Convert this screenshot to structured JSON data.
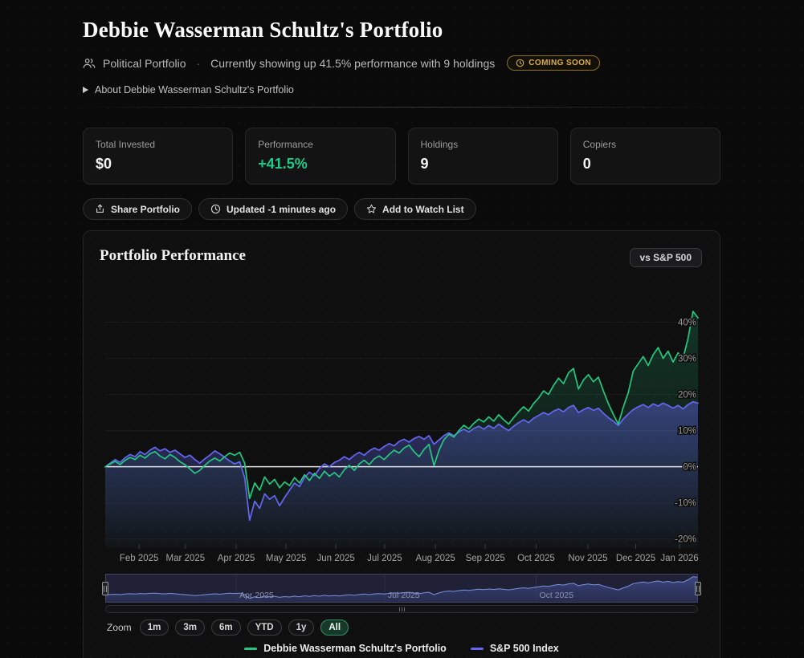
{
  "page": {
    "title": "Debbie Wasserman Schultz's Portfolio",
    "category": "Political Portfolio",
    "separator": "·",
    "summary": "Currently showing up 41.5% performance with 9 holdings",
    "coming_soon_badge": "COMING SOON",
    "about_toggle": "About Debbie Wasserman Schultz's Portfolio"
  },
  "stats": [
    {
      "label": "Total Invested",
      "value": "$0",
      "color": "#f5f5f5"
    },
    {
      "label": "Performance",
      "value": "+41.5%",
      "color": "#1ecb8a"
    },
    {
      "label": "Holdings",
      "value": "9",
      "color": "#f5f5f5"
    },
    {
      "label": "Copiers",
      "value": "0",
      "color": "#f5f5f5"
    }
  ],
  "actions": [
    {
      "label": "Share Portfolio",
      "icon": "share-icon"
    },
    {
      "label": "Updated -1 minutes ago",
      "icon": "clock-icon"
    },
    {
      "label": "Add to Watch List",
      "icon": "star-icon"
    }
  ],
  "chart_card": {
    "title": "Portfolio Performance",
    "compare_button": "vs S&P 500"
  },
  "chart_data": {
    "type": "line",
    "title": "Portfolio Performance",
    "unit": "%",
    "grid": true,
    "legend_position": "bottom-center",
    "y_axis": {
      "ticks": [
        40,
        30,
        20,
        10,
        0,
        -10,
        -20
      ],
      "min": -22.5,
      "max": 49,
      "tick_suffix": "%"
    },
    "x_axis": {
      "labels": [
        "Feb 2025",
        "Mar 2025",
        "Apr 2025",
        "May 2025",
        "Jun 2025",
        "Jul 2025",
        "Aug 2025",
        "Sep 2025",
        "Oct 2025",
        "Nov 2025",
        "Dec 2025",
        "Jan 2026"
      ],
      "label_positions": [
        6.8,
        16.1,
        26.3,
        36.3,
        46.3,
        56.1,
        66.3,
        76.3,
        86.5,
        96.9,
        106.5,
        115.3
      ]
    },
    "series": [
      {
        "name": "Debbie Wasserman Schultz's Portfolio",
        "color": "#24c87f",
        "fill_opacity_top": 0.2,
        "values": [
          0,
          0.8,
          1.5,
          0.6,
          1.8,
          2.6,
          2.0,
          3.2,
          2.4,
          3.6,
          4.2,
          3.0,
          2.2,
          3.4,
          2.6,
          1.4,
          0.6,
          -0.6,
          -1.8,
          -1.0,
          0.4,
          1.6,
          2.4,
          1.6,
          2.8,
          3.8,
          3.2,
          4.0,
          1.0,
          -8.8,
          -4.5,
          -6.5,
          -2.8,
          -4.8,
          -3.5,
          -5.8,
          -4.2,
          -5.2,
          -3.0,
          -4.5,
          -2.2,
          -3.8,
          -1.8,
          -3.2,
          -1.2,
          -2.6,
          -1.6,
          -2.8,
          -0.8,
          0.4,
          -1.0,
          0.8,
          1.8,
          0.6,
          2.2,
          3.0,
          2.0,
          3.4,
          4.6,
          3.8,
          5.2,
          6.0,
          4.2,
          2.8,
          4.8,
          6.2,
          0.3,
          4.5,
          7.5,
          9.0,
          8.2,
          10.0,
          11.5,
          10.5,
          12.0,
          13.2,
          12.4,
          13.8,
          12.6,
          14.4,
          13.0,
          11.8,
          13.6,
          15.2,
          16.6,
          15.4,
          17.5,
          19.0,
          21.0,
          20.0,
          22.5,
          24.5,
          23.0,
          26.0,
          27.2,
          21.5,
          24.0,
          25.5,
          23.5,
          24.8,
          21.0,
          17.5,
          14.5,
          11.8,
          16.5,
          20.5,
          26.5,
          28.5,
          30.5,
          28.0,
          31.0,
          33.0,
          30.0,
          32.0,
          29.0,
          31.5,
          30.0,
          35.5,
          43.0,
          41.2
        ]
      },
      {
        "name": "S&P 500 Index",
        "color": "#6467f2",
        "fill_opacity_top": 0.42,
        "values": [
          0,
          1.0,
          2.0,
          1.2,
          2.5,
          3.4,
          2.8,
          4.2,
          3.4,
          4.6,
          5.4,
          4.4,
          5.0,
          4.0,
          4.6,
          3.6,
          2.6,
          3.2,
          2.0,
          1.0,
          2.2,
          3.2,
          4.4,
          3.6,
          2.6,
          1.6,
          0.8,
          1.4,
          -3.0,
          -14.8,
          -9.5,
          -11.5,
          -7.5,
          -9.0,
          -8.0,
          -10.8,
          -8.5,
          -6.5,
          -4.5,
          -5.5,
          -3.0,
          -1.5,
          -2.5,
          -0.5,
          0.8,
          0.0,
          1.2,
          1.8,
          2.8,
          2.0,
          3.2,
          4.0,
          3.2,
          4.4,
          5.2,
          4.6,
          5.6,
          6.4,
          5.8,
          7.0,
          7.6,
          6.8,
          7.8,
          8.4,
          7.6,
          8.6,
          6.2,
          7.4,
          8.6,
          9.4,
          8.6,
          9.6,
          10.4,
          9.6,
          10.6,
          11.2,
          10.4,
          11.4,
          10.6,
          11.8,
          10.8,
          10.0,
          11.2,
          12.2,
          13.0,
          12.2,
          13.4,
          14.2,
          15.0,
          14.4,
          15.4,
          16.0,
          15.2,
          16.4,
          17.0,
          15.0,
          15.8,
          16.4,
          15.6,
          16.2,
          14.8,
          13.6,
          12.6,
          11.4,
          13.2,
          14.6,
          15.8,
          16.6,
          17.2,
          16.4,
          17.4,
          16.8,
          17.6,
          17.0,
          16.2,
          17.0,
          16.0,
          17.2,
          18.0,
          17.6
        ]
      }
    ],
    "navigator": {
      "labels": [
        "Apr 2025",
        "Jul 2025",
        "Oct 2025"
      ],
      "positions": [
        26.3,
        56.1,
        86.5
      ],
      "line_color": "#7b97d9",
      "mask_color": "rgba(116,120,220,0.16)"
    },
    "zoom_controls": {
      "label": "Zoom",
      "options": [
        "1m",
        "3m",
        "6m",
        "YTD",
        "1y",
        "All"
      ],
      "selected": "All"
    }
  }
}
